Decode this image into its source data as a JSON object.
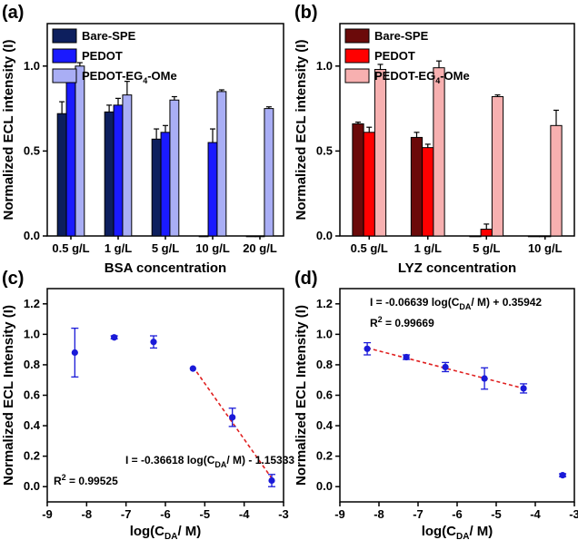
{
  "chart_data": [
    {
      "panel_label": "(a)",
      "type": "bar",
      "xlabel": "BSA concentration",
      "ylabel": "Normalized ECL intensity (I)",
      "ylim": [
        0,
        1.25
      ],
      "yticks": [
        "0.0",
        "0.5",
        "1.0"
      ],
      "categories": [
        "0.5 g/L",
        "1 g/L",
        "5 g/L",
        "10 g/L",
        "20 g/L"
      ],
      "series": [
        {
          "name": "Bare-SPE",
          "color": "#0d1f5e",
          "values": [
            0.72,
            0.73,
            0.57,
            0.0,
            0.0
          ],
          "errors": [
            0.07,
            0.04,
            0.06,
            0.0,
            0.0
          ]
        },
        {
          "name": "PEDOT",
          "color": "#1a1aff",
          "values": [
            0.92,
            0.77,
            0.61,
            0.55,
            0.0
          ],
          "errors": [
            0.04,
            0.04,
            0.04,
            0.08,
            0.0
          ]
        },
        {
          "name": "PEDOT-EG4-OMe",
          "color": "#a9aef5",
          "values": [
            1.0,
            0.83,
            0.8,
            0.85,
            0.75
          ],
          "errors": [
            0.02,
            0.08,
            0.02,
            0.01,
            0.01
          ]
        }
      ],
      "legend": {
        "items": [
          "Bare-SPE",
          "PEDOT",
          "PEDOT-EG4-OMe"
        ],
        "position": "top-left"
      }
    },
    {
      "panel_label": "(b)",
      "type": "bar",
      "xlabel": "LYZ concentration",
      "ylabel": "Normalized ECL intensity (I)",
      "ylim": [
        0,
        1.25
      ],
      "yticks": [
        "0.0",
        "0.5",
        "1.0"
      ],
      "categories": [
        "0.5 g/L",
        "1 g/L",
        "5 g/L",
        "10 g/L"
      ],
      "series": [
        {
          "name": "Bare-SPE",
          "color": "#6b0a0a",
          "values": [
            0.66,
            0.58,
            0.0,
            0.0
          ],
          "errors": [
            0.01,
            0.03,
            0.0,
            0.0
          ]
        },
        {
          "name": "PEDOT",
          "color": "#ff0000",
          "values": [
            0.61,
            0.52,
            0.04,
            0.0
          ],
          "errors": [
            0.03,
            0.02,
            0.03,
            0.0
          ]
        },
        {
          "name": "PEDOT-EG4-OMe",
          "color": "#f7b0b0",
          "values": [
            0.98,
            0.99,
            0.82,
            0.65
          ],
          "errors": [
            0.03,
            0.04,
            0.01,
            0.09
          ]
        }
      ],
      "legend": {
        "items": [
          "Bare-SPE",
          "PEDOT",
          "PEDOT-EG4-OMe"
        ],
        "position": "top-left"
      }
    },
    {
      "panel_label": "(c)",
      "type": "scatter",
      "xlabel": "log(CDA/ M)",
      "ylabel": "Normalized ECL Intensity (I)",
      "xlim": [
        -9,
        -3
      ],
      "ylim": [
        -0.1,
        1.3
      ],
      "xticks": [
        "-9",
        "-8",
        "-7",
        "-6",
        "-5",
        "-4",
        "-3"
      ],
      "yticks": [
        "0.0",
        "0.2",
        "0.4",
        "0.6",
        "0.8",
        "1.0",
        "1.2"
      ],
      "points": [
        {
          "x": -8.3,
          "y": 0.88,
          "err": 0.16
        },
        {
          "x": -7.3,
          "y": 0.98,
          "err": 0.01
        },
        {
          "x": -6.3,
          "y": 0.95,
          "err": 0.04
        },
        {
          "x": -5.3,
          "y": 0.775,
          "err": 0.0
        },
        {
          "x": -4.3,
          "y": 0.455,
          "err": 0.06
        },
        {
          "x": -3.3,
          "y": 0.04,
          "err": 0.04
        }
      ],
      "fit": {
        "slope": -0.36618,
        "intercept": -1.15333,
        "x_range": [
          -5.3,
          -3.3
        ]
      },
      "equation": "I = -0.36618 log(C",
      "equation_sub": "DA",
      "equation_tail": "/ M) - 1.15333",
      "r2_label": "R",
      "r2_sup": "2",
      "r2_value": " = 0.99525",
      "color": "#1a1ad8",
      "fit_color": "#e02020"
    },
    {
      "panel_label": "(d)",
      "type": "scatter",
      "xlabel": "log(CDA/ M)",
      "ylabel": "Normalized ECL Intensity (I)",
      "xlim": [
        -9,
        -3
      ],
      "ylim": [
        -0.1,
        1.3
      ],
      "xticks": [
        "-9",
        "-8",
        "-7",
        "-6",
        "-5",
        "-4",
        "-3"
      ],
      "yticks": [
        "0.0",
        "0.2",
        "0.4",
        "0.6",
        "0.8",
        "1.0",
        "1.2"
      ],
      "points": [
        {
          "x": -8.3,
          "y": 0.905,
          "err": 0.04
        },
        {
          "x": -7.3,
          "y": 0.85,
          "err": 0.015
        },
        {
          "x": -6.3,
          "y": 0.785,
          "err": 0.03
        },
        {
          "x": -5.3,
          "y": 0.71,
          "err": 0.07
        },
        {
          "x": -4.3,
          "y": 0.645,
          "err": 0.03
        },
        {
          "x": -3.3,
          "y": 0.075,
          "err": 0.01
        }
      ],
      "fit": {
        "slope": -0.06639,
        "intercept": 0.35942,
        "x_range": [
          -8.3,
          -4.3
        ]
      },
      "equation": "I = -0.06639 log(C",
      "equation_sub": "DA",
      "equation_tail": "/ M) + 0.35942",
      "r2_label": "R",
      "r2_sup": "2",
      "r2_value": " = 0.99669",
      "color": "#1a1ad8",
      "fit_color": "#e02020"
    }
  ]
}
